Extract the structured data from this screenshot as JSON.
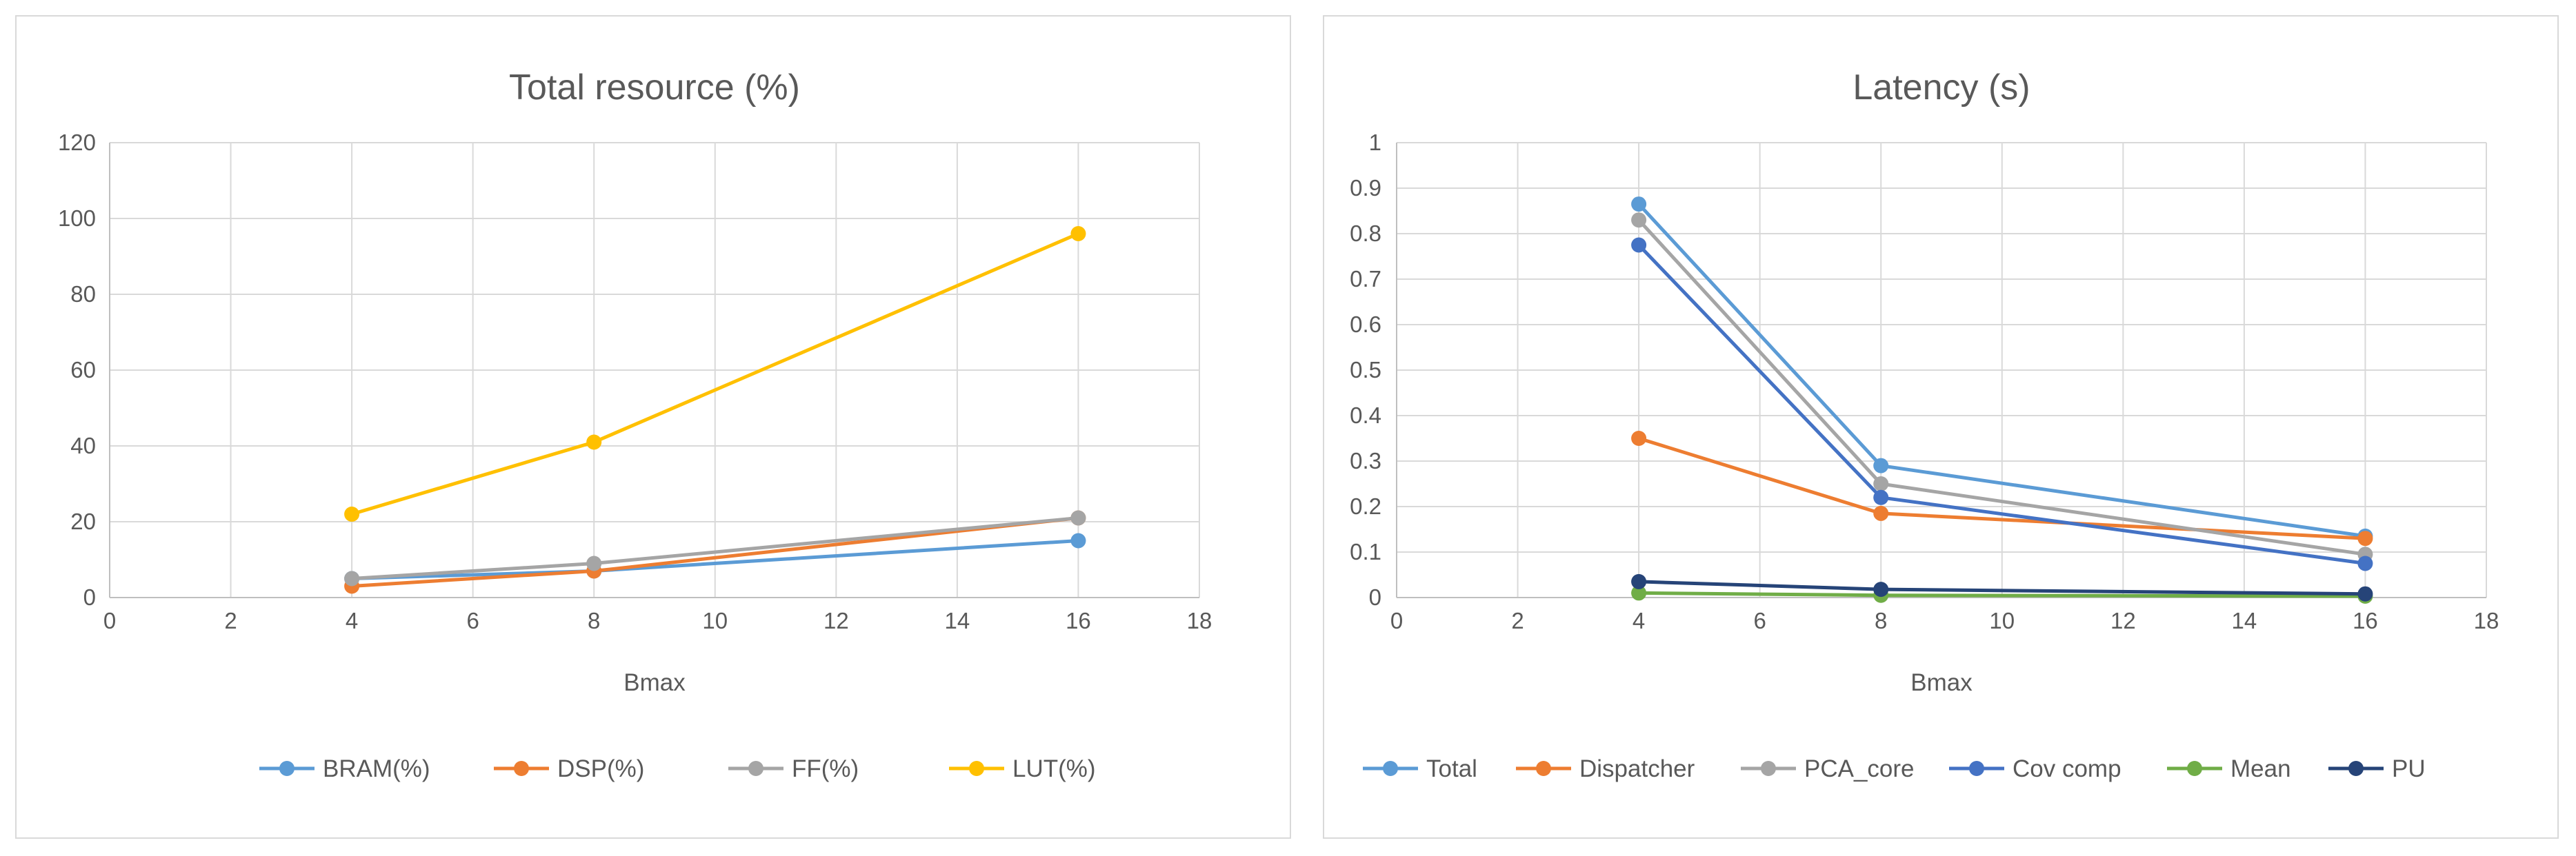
{
  "chart_data": [
    {
      "type": "scatter",
      "title": "Total resource (%)",
      "xlabel": "Bmax",
      "ylabel": "",
      "xlim": [
        0,
        18
      ],
      "ylim": [
        0,
        120
      ],
      "xticks": [
        0,
        2,
        4,
        6,
        8,
        10,
        12,
        14,
        16,
        18
      ],
      "yticks": [
        0,
        20,
        40,
        60,
        80,
        100,
        120
      ],
      "x": [
        4,
        8,
        16
      ],
      "grid": true,
      "legend_position": "bottom",
      "series": [
        {
          "name": "BRAM(%)",
          "color": "#5b9bd5",
          "values": [
            5,
            7,
            15
          ]
        },
        {
          "name": "DSP(%)",
          "color": "#ed7d31",
          "values": [
            3,
            7,
            21
          ]
        },
        {
          "name": "FF(%)",
          "color": "#a5a5a5",
          "values": [
            5,
            9,
            21
          ]
        },
        {
          "name": "LUT(%)",
          "color": "#ffc000",
          "values": [
            22,
            41,
            96
          ]
        }
      ]
    },
    {
      "type": "scatter",
      "title": "Latency (s)",
      "xlabel": "Bmax",
      "ylabel": "",
      "xlim": [
        0,
        18
      ],
      "ylim": [
        0,
        1
      ],
      "xticks": [
        0,
        2,
        4,
        6,
        8,
        10,
        12,
        14,
        16,
        18
      ],
      "yticks": [
        0,
        0.1,
        0.2,
        0.3,
        0.4,
        0.5,
        0.6,
        0.7,
        0.8,
        0.9,
        1
      ],
      "x": [
        4,
        8,
        16
      ],
      "grid": true,
      "legend_position": "bottom",
      "series": [
        {
          "name": "Total",
          "color": "#5b9bd5",
          "values": [
            0.865,
            0.29,
            0.135
          ]
        },
        {
          "name": "Dispatcher",
          "color": "#ed7d31",
          "values": [
            0.35,
            0.185,
            0.13
          ]
        },
        {
          "name": "PCA_core",
          "color": "#a5a5a5",
          "values": [
            0.83,
            0.25,
            0.095
          ]
        },
        {
          "name": "Cov comp",
          "color": "#4472c4",
          "values": [
            0.775,
            0.22,
            0.075
          ]
        },
        {
          "name": "Mean",
          "color": "#70ad47",
          "values": [
            0.01,
            0.005,
            0.003
          ]
        },
        {
          "name": "PU",
          "color": "#264478",
          "values": [
            0.035,
            0.018,
            0.008
          ]
        }
      ]
    }
  ]
}
